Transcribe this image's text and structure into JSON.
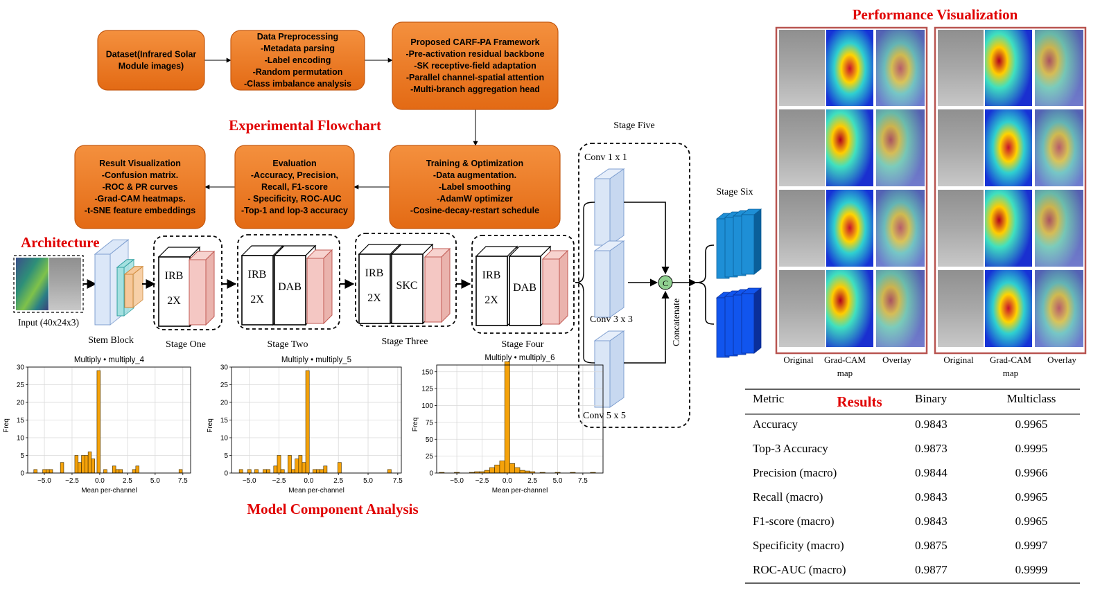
{
  "titles": {
    "flowchart": "Experimental Flowchart",
    "architecture": "Architecture",
    "component_analysis": "Model Component Analysis",
    "performance": "Performance Visualization",
    "results": "Results"
  },
  "flow_boxes": [
    {
      "lines": [
        "Dataset(Infrared Solar",
        "Module images)"
      ]
    },
    {
      "lines": [
        "Data Preprocessing",
        "-Metadata parsing",
        "-Label encoding",
        "-Random permutation",
        "-Class imbalance analysis"
      ]
    },
    {
      "lines": [
        "Proposed CARF-PA Framework",
        "-Pre-activation residual backbone",
        "-SK receptive-field adaptation",
        "-Parallel channel-spatial attention",
        "-Multi-branch aggregation head"
      ]
    },
    {
      "lines": [
        "Training & Optimization",
        "-Data augmentation.",
        "-Label smoothing",
        "-AdamW optimizer",
        "-Cosine-decay-restart schedule"
      ]
    },
    {
      "lines": [
        "Evaluation",
        "-Accuracy, Precision,",
        "Recall, F1-score",
        "- Specificity, ROC-AUC",
        "-Top-1 and lop-3 accuracy"
      ]
    },
    {
      "lines": [
        "Result Visualization",
        "-Confusion matrix.",
        "-ROC & PR curves",
        "-Grad-CAM heatmaps.",
        "-t-SNE feature embeddings"
      ]
    }
  ],
  "arch": {
    "input_label": "Input (40x24x3)",
    "stem_label": "Stem Block",
    "stages": [
      {
        "label": "Stage One",
        "blocks": [
          "IRB",
          "2X"
        ]
      },
      {
        "label": "Stage Two",
        "blocks": [
          "IRB",
          "2X",
          "DAB"
        ]
      },
      {
        "label": "Stage Three",
        "blocks": [
          "IRB",
          "2X",
          "SKC"
        ]
      },
      {
        "label": "Stage Four",
        "blocks": [
          "IRB",
          "2X",
          "DAB"
        ]
      }
    ],
    "stage_five": "Stage Five",
    "stage_six": "Stage Six",
    "conv1": "Conv 1 x 1",
    "conv3": "Conv 3 x 3",
    "conv5": "Conv 5 x 5",
    "concat_symbol": "C",
    "concatenate": "Concatenate"
  },
  "histograms": [
    {
      "title": "Multiply • multiply_4",
      "xlabel": "Mean per-channel",
      "ylabel": "Freq",
      "yticks": [
        "0",
        "5",
        "10",
        "15",
        "20",
        "25",
        "30"
      ],
      "xticks": [
        "−5.0",
        "−2.5",
        "0.0",
        "2.5",
        "5.0",
        "7.5"
      ]
    },
    {
      "title": "Multiply • multiply_5",
      "xlabel": "Mean per-channel",
      "ylabel": "Freq",
      "yticks": [
        "0",
        "5",
        "10",
        "15",
        "20",
        "25",
        "30"
      ],
      "xticks": [
        "−5.0",
        "−2.5",
        "0.0",
        "2.5",
        "5.0",
        "7.5"
      ]
    },
    {
      "title": "Multiply • multiply_6",
      "xlabel": "Mean per-channel",
      "ylabel": "Freq",
      "yticks": [
        "0",
        "25",
        "50",
        "75",
        "100",
        "125",
        "150"
      ],
      "xticks": [
        "−5.0",
        "−2.5",
        "0.0",
        "2.5",
        "5.0",
        "7.5"
      ]
    }
  ],
  "chart_data": [
    {
      "type": "bar",
      "title": "Multiply • multiply_4",
      "xlabel": "Mean per-channel",
      "ylabel": "Freq",
      "xlim": [
        -6.5,
        8.2
      ],
      "ylim": [
        0,
        30
      ],
      "x": [
        -5.8,
        -5.0,
        -4.7,
        -4.4,
        -3.4,
        -2.1,
        -1.8,
        -1.5,
        -1.2,
        -0.9,
        -0.6,
        -0.1,
        0.5,
        1.3,
        1.6,
        1.9,
        3.1,
        3.4,
        7.3
      ],
      "values": [
        1,
        1,
        1,
        1,
        3,
        5,
        3,
        5,
        5,
        6,
        4,
        29,
        1,
        2,
        1,
        1,
        1,
        2,
        1
      ]
    },
    {
      "title": "Multiply • multiply_5",
      "type": "bar",
      "xlabel": "Mean per-channel",
      "ylabel": "Freq",
      "xlim": [
        -6.5,
        7.8
      ],
      "ylim": [
        0,
        30
      ],
      "x": [
        -5.7,
        -5.0,
        -4.4,
        -3.7,
        -3.4,
        -2.8,
        -2.5,
        -2.2,
        -1.6,
        -1.3,
        -1.0,
        -0.7,
        -0.4,
        -0.1,
        0.5,
        0.8,
        1.1,
        1.4,
        2.6,
        6.8
      ],
      "values": [
        1,
        1,
        1,
        1,
        1,
        2,
        5,
        1,
        5,
        1,
        4,
        5,
        3,
        29,
        1,
        1,
        1,
        2,
        3,
        1
      ]
    },
    {
      "title": "Multiply • multiply_6",
      "type": "bar",
      "xlabel": "Mean per-channel",
      "ylabel": "Freq",
      "xlim": [
        -7.0,
        9.5
      ],
      "ylim": [
        0,
        160
      ],
      "x": [
        -6.5,
        -5.0,
        -3.5,
        -3.0,
        -2.5,
        -2.0,
        -1.5,
        -1.0,
        -0.5,
        0.0,
        0.5,
        1.0,
        1.5,
        2.0,
        2.5,
        3.5,
        5.0,
        6.5,
        8.5
      ],
      "values": [
        1,
        1,
        1,
        2,
        2,
        4,
        8,
        12,
        18,
        165,
        14,
        8,
        4,
        3,
        2,
        1,
        1,
        1,
        1
      ]
    }
  ],
  "perf": {
    "col_labels": [
      "Original",
      "Grad-CAM\nmap",
      "Overlay"
    ],
    "col_labels_flat": [
      "Original",
      "Grad-CAM",
      "map",
      "Overlay"
    ]
  },
  "results_table": {
    "headers": [
      "Metric",
      "Binary",
      "Multiclass"
    ],
    "rows": [
      [
        "Accuracy",
        "0.9843",
        "0.9965"
      ],
      [
        "Top-3 Accuracy",
        "0.9873",
        "0.9995"
      ],
      [
        "Precision (macro)",
        "0.9844",
        "0.9966"
      ],
      [
        "Recall (macro)",
        "0.9843",
        "0.9965"
      ],
      [
        "F1-score (macro)",
        "0.9843",
        "0.9965"
      ],
      [
        "Specificity (macro)",
        "0.9875",
        "0.9997"
      ],
      [
        "ROC-AUC (macro)",
        "0.9877",
        "0.9999"
      ]
    ]
  },
  "colors": {
    "orange_box": "#ed7d31",
    "orange_box_dark": "#c45911",
    "title_red": "#e00000",
    "bar_orange": "#f5a20a",
    "block_blue": "#dae6f6",
    "block_pink": "#f4c7c3",
    "stage6_light": "#1e8fd6",
    "stage6_dark": "#1155ee",
    "concat_green": "#90d090"
  }
}
